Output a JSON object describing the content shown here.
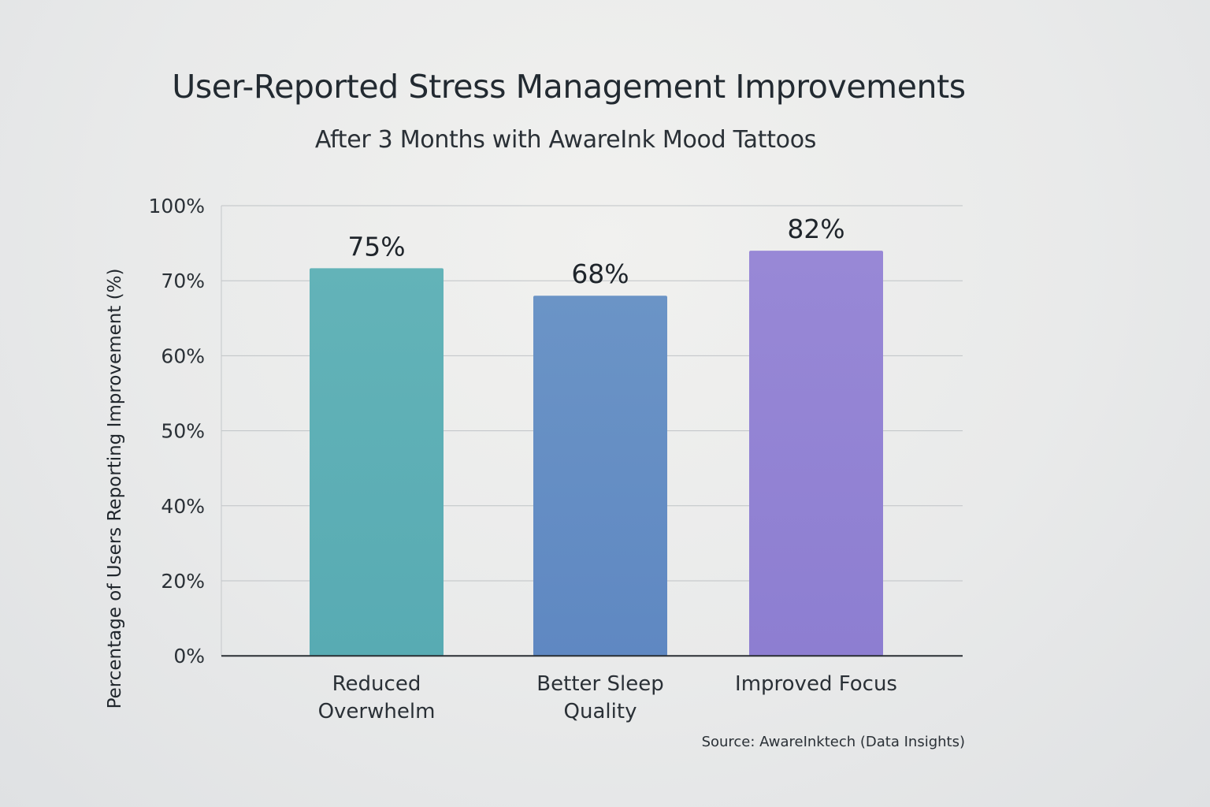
{
  "chart_data": {
    "type": "bar",
    "title": "User-Reported Stress Management Improvements",
    "subtitle": "After 3 Months with AwareInk Mood Tattoos",
    "ylabel": "Percentage of Users Reporting Improvement (%)",
    "xlabel": "",
    "categories": [
      "Reduced Overwhelm",
      "Better Sleep Quality",
      "Improved Focus"
    ],
    "category_lines": [
      [
        "Reduced",
        "Overwhelm"
      ],
      [
        "Better Sleep",
        "Quality"
      ],
      [
        "Improved Focus"
      ]
    ],
    "values": [
      75,
      68,
      82
    ],
    "data_labels": [
      "75%",
      "68%",
      "82%"
    ],
    "y_ticks": [
      {
        "label": "0%",
        "value": 0
      },
      {
        "label": "20%",
        "value": 20
      },
      {
        "label": "40%",
        "value": 40
      },
      {
        "label": "50%",
        "value": 50
      },
      {
        "label": "60%",
        "value": 60
      },
      {
        "label": "70%",
        "value": 70
      },
      {
        "label": "100%",
        "value": 100
      }
    ],
    "grid": true,
    "legend": "none",
    "colors": [
      "#5fb0b6",
      "#668fc4",
      "#9483d3"
    ],
    "source": "Source: AwareInktech (Data Insights)"
  }
}
